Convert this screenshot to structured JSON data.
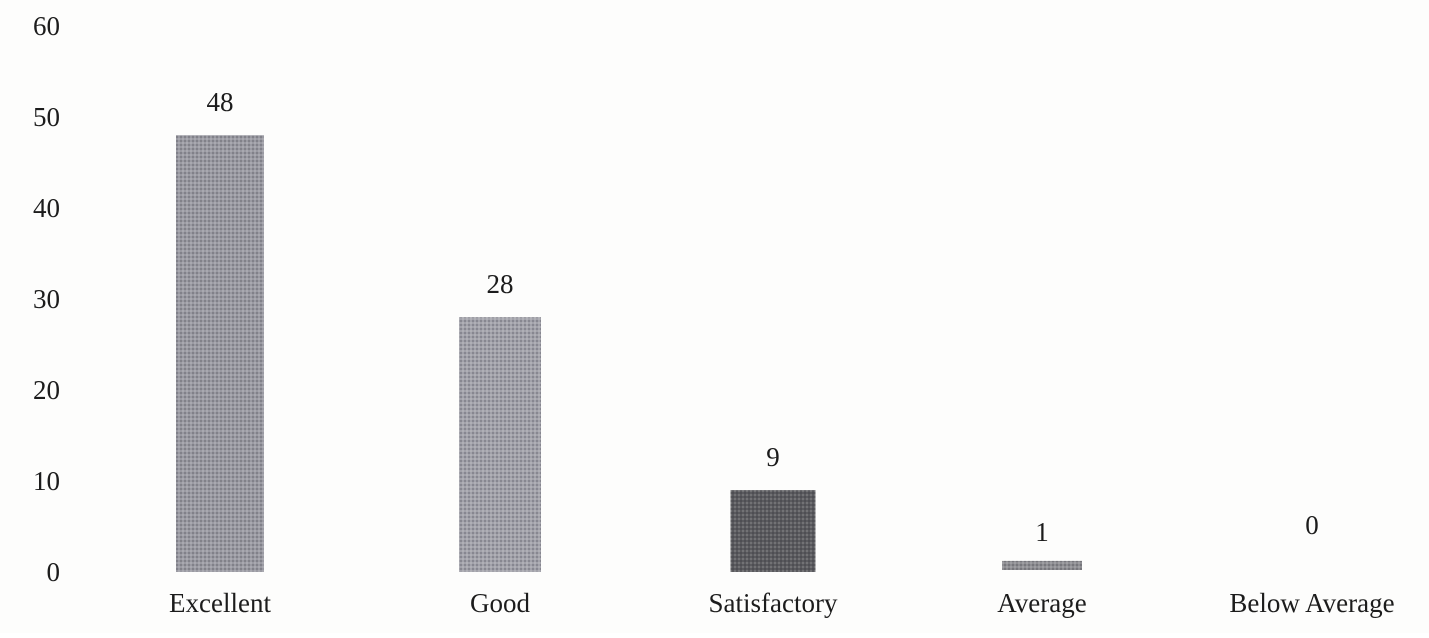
{
  "chart_data": {
    "type": "bar",
    "categories": [
      "Excellent",
      "Good",
      "Satisfactory",
      "Average",
      "Below Average"
    ],
    "values": [
      48,
      28,
      9,
      1,
      0
    ],
    "data_labels": [
      "48",
      "28",
      "9",
      "1",
      "0"
    ],
    "title": "",
    "xlabel": "",
    "ylabel": "",
    "ylim": [
      0,
      60
    ],
    "yticks": [
      0,
      10,
      20,
      30,
      40,
      50,
      60
    ],
    "ytick_labels": [
      "0",
      "10",
      "20",
      "30",
      "40",
      "50",
      "60"
    ],
    "grid": false,
    "legend": "none",
    "bar_colors": [
      "#9a9aa2",
      "#a2a2aa",
      "#5a5a5e",
      "#8e8e92",
      "#a0a0a6"
    ]
  }
}
